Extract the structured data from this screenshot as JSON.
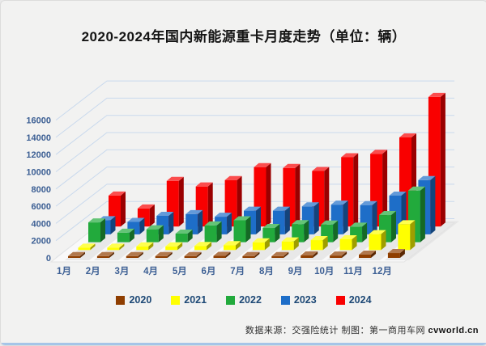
{
  "page": {
    "background": "#f2f2f1",
    "bottom_accent_color": "#a5c5e8"
  },
  "title": {
    "text": "2020-2024年国内新能源重卡月度走势（单位：辆）"
  },
  "footer": {
    "text": "数据来源：交强险统计 制图：第一商用车网 ",
    "site": "cvworld.cn"
  },
  "chart_data": {
    "type": "bar",
    "variant": "3d-column",
    "title": "2020-2024年国内新能源重卡月度走势（单位：辆）",
    "unit": "辆",
    "categories": [
      "1月",
      "2月",
      "3月",
      "4月",
      "5月",
      "6月",
      "7月",
      "8月",
      "9月",
      "10月",
      "11月",
      "12月"
    ],
    "series": [
      {
        "name": "2020",
        "color": "#8f3e00",
        "values": [
          100,
          50,
          120,
          140,
          160,
          230,
          190,
          170,
          280,
          270,
          380,
          560
        ]
      },
      {
        "name": "2021",
        "color": "#ffff00",
        "values": [
          280,
          280,
          430,
          430,
          480,
          570,
          900,
          1000,
          1150,
          1250,
          1850,
          3000
        ]
      },
      {
        "name": "2022",
        "color": "#22aa3c",
        "values": [
          2300,
          1100,
          1500,
          1000,
          1950,
          2550,
          1650,
          2100,
          2050,
          1800,
          3150,
          6000
        ]
      },
      {
        "name": "2023",
        "color": "#1e6ec8",
        "values": [
          1650,
          1450,
          2150,
          2350,
          2050,
          2750,
          2750,
          3250,
          3450,
          3400,
          4500,
          6300
        ]
      },
      {
        "name": "2024",
        "color": "#f90000",
        "values": [
          3600,
          2100,
          5300,
          4650,
          5400,
          6900,
          6800,
          6450,
          8050,
          8450,
          10350,
          15050
        ]
      }
    ],
    "ylim": [
      0,
      16000
    ],
    "ytick_interval": 2000,
    "yticks": [
      0,
      2000,
      4000,
      6000,
      8000,
      10000,
      12000,
      14000,
      16000
    ],
    "legend_position": "bottom",
    "grid": true,
    "gridline_color": "#c9d9ed",
    "axis_label_color": "#3c5f94",
    "legend_text_color": "#1e4976",
    "floor_color": "#f9f9f9",
    "floor_stripe_color": "#e2e2e2"
  }
}
